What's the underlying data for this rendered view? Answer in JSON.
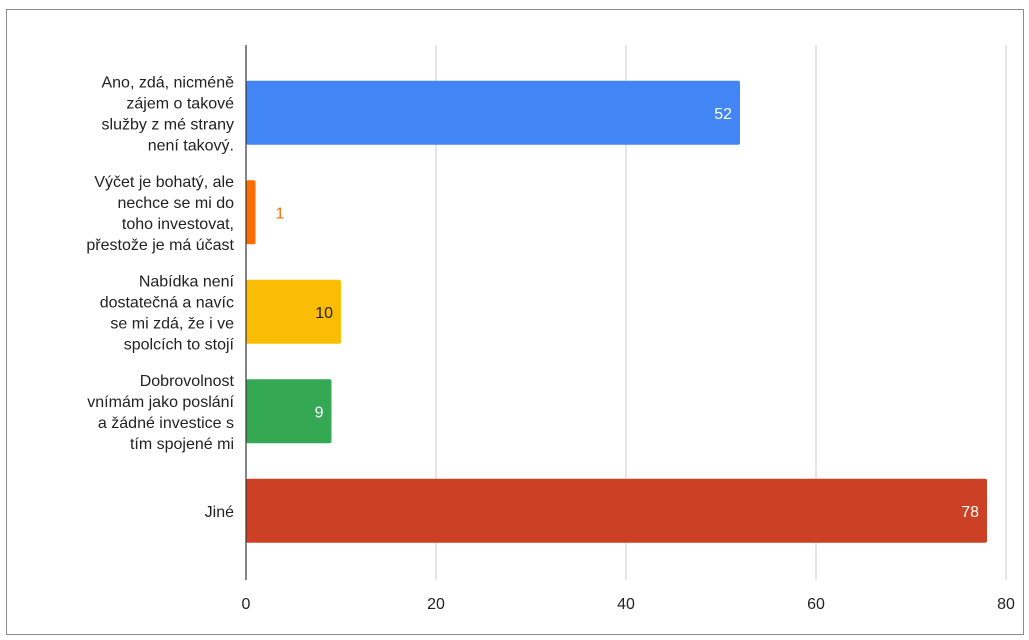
{
  "chart_data": {
    "type": "bar",
    "orientation": "horizontal",
    "categories": [
      [
        "Ano, zdá, nicméně",
        "zájem o takové",
        "služby z mé strany",
        "není takový."
      ],
      [
        "Výčet je bohatý, ale",
        "nechce se mi do",
        "toho investovat,",
        "přestože je má účast"
      ],
      [
        "Nabídka není",
        "dostatečná a navíc",
        "se mi zdá, že i ve",
        "spolcích to stojí"
      ],
      [
        "Dobrovolnost",
        "vnímám jako poslání",
        "a žádné investice s",
        "tím spojené mi"
      ],
      [
        "Jiné"
      ]
    ],
    "values": [
      52,
      1,
      10,
      9,
      78
    ],
    "colors": [
      "#4285f4",
      "#ff6d01",
      "#fbbc04",
      "#34a853",
      "#cc4125"
    ],
    "label_colors": [
      "#ffffff",
      "#ff6d01",
      "#222222",
      "#ffffff",
      "#ffffff"
    ],
    "xlim": [
      0,
      80
    ],
    "xticks": [
      0,
      20,
      40,
      60,
      80
    ],
    "grid": true,
    "legend": "none",
    "title": "",
    "xlabel": "",
    "ylabel": ""
  }
}
